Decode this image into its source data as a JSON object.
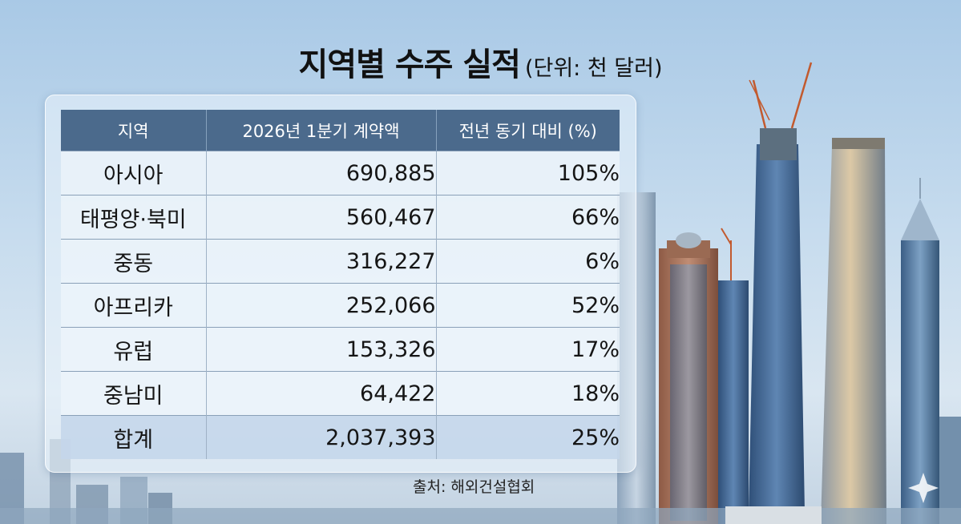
{
  "title": {
    "main": "지역별 수주 실적",
    "unit": "(단위: 천 달러)"
  },
  "table": {
    "headers": [
      "지역",
      "2026년 1분기 계약액",
      "전년 동기 대비 (%)"
    ],
    "rows": [
      {
        "region": "아시아",
        "amount": "690,885",
        "ratio": "105%"
      },
      {
        "region": "태평양·북미",
        "amount": "560,467",
        "ratio": "66%"
      },
      {
        "region": "중동",
        "amount": "316,227",
        "ratio": "6%"
      },
      {
        "region": "아프리카",
        "amount": "252,066",
        "ratio": "52%"
      },
      {
        "region": "유럽",
        "amount": "153,326",
        "ratio": "17%"
      },
      {
        "region": "중남미",
        "amount": "64,422",
        "ratio": "18%"
      }
    ],
    "total": {
      "region": "합계",
      "amount": "2,037,393",
      "ratio": "25%"
    }
  },
  "source": "출처: 해외건설협회",
  "colors": {
    "header_bg": "#4b6a8c",
    "sky": "#a9c9e6"
  }
}
